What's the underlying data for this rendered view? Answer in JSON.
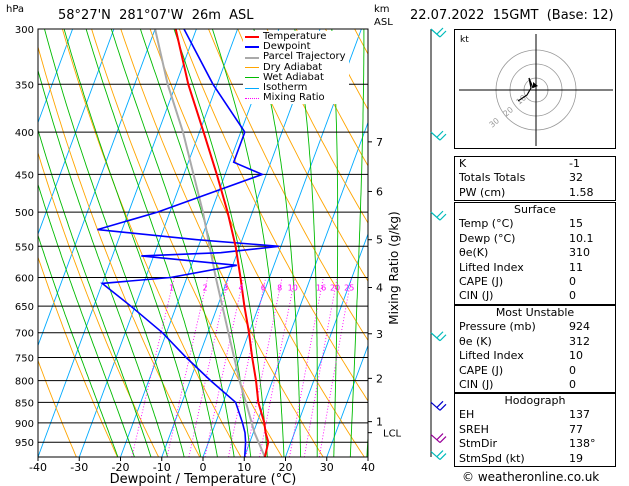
{
  "header": {
    "hpa_label": "hPa",
    "location": "58°27'N  281°07'W  26m  ASL",
    "km_label": "km",
    "asl_label": "ASL",
    "datetime": "22.07.2022  15GMT  (Base: 12)"
  },
  "chart_data": {
    "type": "skew-t",
    "xlabel": "Dewpoint / Temperature (°C)",
    "ylabel_left": "hPa",
    "ylabel_right": "Mixing Ratio (g/kg)",
    "xlim": [
      -40,
      40
    ],
    "ylim": [
      990,
      300
    ],
    "pressure_levels": [
      300,
      350,
      400,
      450,
      500,
      550,
      600,
      650,
      700,
      750,
      800,
      850,
      900,
      950
    ],
    "temp_ticks": [
      -40,
      -30,
      -20,
      -10,
      0,
      10,
      20,
      30,
      40
    ],
    "km_ticks": [
      {
        "km": "1",
        "p": 897
      },
      {
        "km": "2",
        "p": 795
      },
      {
        "km": "3",
        "p": 702
      },
      {
        "km": "4",
        "p": 617
      },
      {
        "km": "5",
        "p": 540
      },
      {
        "km": "6",
        "p": 472
      },
      {
        "km": "7",
        "p": 411
      }
    ],
    "lcl": {
      "label": "LCL",
      "p": 925
    },
    "mixing_ratio_labels": [
      "1",
      "2",
      "3",
      "4",
      "6",
      "8",
      "10",
      "16",
      "20",
      "25"
    ],
    "mixing_ratio_values": [
      1,
      2,
      3,
      4,
      6,
      8,
      10,
      16,
      20,
      25
    ],
    "legend": [
      "Temperature",
      "Dewpoint",
      "Parcel Trajectory",
      "Dry Adiabat",
      "Wet Adiabat",
      "Isotherm",
      "Mixing Ratio"
    ],
    "series": [
      {
        "name": "Temperature",
        "color": "#ff0000",
        "points": [
          [
            990,
            15
          ],
          [
            950,
            14.5
          ],
          [
            925,
            13
          ],
          [
            900,
            11.8
          ],
          [
            850,
            8.5
          ],
          [
            800,
            6
          ],
          [
            750,
            3
          ],
          [
            700,
            0
          ],
          [
            650,
            -3.5
          ],
          [
            600,
            -7
          ],
          [
            550,
            -11
          ],
          [
            500,
            -16
          ],
          [
            450,
            -22
          ],
          [
            400,
            -29
          ],
          [
            350,
            -37
          ],
          [
            300,
            -45
          ]
        ]
      },
      {
        "name": "Dewpoint",
        "color": "#0000ff",
        "points": [
          [
            990,
            10.1
          ],
          [
            950,
            9
          ],
          [
            925,
            8
          ],
          [
            900,
            6.5
          ],
          [
            850,
            3
          ],
          [
            800,
            -5
          ],
          [
            750,
            -13
          ],
          [
            700,
            -21
          ],
          [
            650,
            -31
          ],
          [
            610,
            -40
          ],
          [
            600,
            -24
          ],
          [
            580,
            -9
          ],
          [
            565,
            -33
          ],
          [
            560,
            -14
          ],
          [
            550,
            -0.5
          ],
          [
            540,
            -21
          ],
          [
            525,
            -46
          ],
          [
            500,
            -33
          ],
          [
            450,
            -11
          ],
          [
            435,
            -19
          ],
          [
            400,
            -19
          ],
          [
            350,
            -31
          ],
          [
            300,
            -43
          ]
        ]
      },
      {
        "name": "Parcel Trajectory",
        "color": "#aaaaaa",
        "points": [
          [
            990,
            15
          ],
          [
            925,
            10.3
          ],
          [
            850,
            5.5
          ],
          [
            800,
            2
          ],
          [
            700,
            -5
          ],
          [
            600,
            -13
          ],
          [
            500,
            -22
          ],
          [
            400,
            -34
          ],
          [
            350,
            -42
          ],
          [
            300,
            -50
          ]
        ]
      }
    ],
    "hodograph_label": "kt",
    "hodograph_rings": [
      "10",
      "20",
      "30"
    ]
  },
  "indices": {
    "k": {
      "label": "K",
      "value": "-1"
    },
    "tt": {
      "label": "Totals Totals",
      "value": "32"
    },
    "pw": {
      "label": "PW (cm)",
      "value": "1.58"
    }
  },
  "surface": {
    "title": "Surface",
    "temp": {
      "label": "Temp (°C)",
      "value": "15"
    },
    "dewp": {
      "label": "Dewp (°C)",
      "value": "10.1"
    },
    "thetae": {
      "label": "θe(K)",
      "value": "310"
    },
    "li": {
      "label": "Lifted Index",
      "value": "11"
    },
    "cape": {
      "label": "CAPE (J)",
      "value": "0"
    },
    "cin": {
      "label": "CIN (J)",
      "value": "0"
    }
  },
  "most_unstable": {
    "title": "Most Unstable",
    "pressure": {
      "label": "Pressure (mb)",
      "value": "924"
    },
    "thetae": {
      "label": "θe (K)",
      "value": "312"
    },
    "li": {
      "label": "Lifted Index",
      "value": "10"
    },
    "cape": {
      "label": "CAPE (J)",
      "value": "0"
    },
    "cin": {
      "label": "CIN (J)",
      "value": "0"
    }
  },
  "hodograph": {
    "title": "Hodograph",
    "eh": {
      "label": "EH",
      "value": "137"
    },
    "sreh": {
      "label": "SREH",
      "value": "77"
    },
    "stmdir": {
      "label": "StmDir",
      "value": "138°"
    },
    "stmspd": {
      "label": "StmSpd (kt)",
      "value": "19"
    }
  },
  "footer": {
    "credit": "© weatheronline.co.uk"
  },
  "colors": {
    "temperature": "#ff0000",
    "dewpoint": "#0000ff",
    "parcel": "#aaaaaa",
    "dry_adiabat": "#ffa500",
    "wet_adiabat": "#00bb00",
    "isotherm": "#00aaff",
    "mixing_ratio": "#ff00ff"
  }
}
